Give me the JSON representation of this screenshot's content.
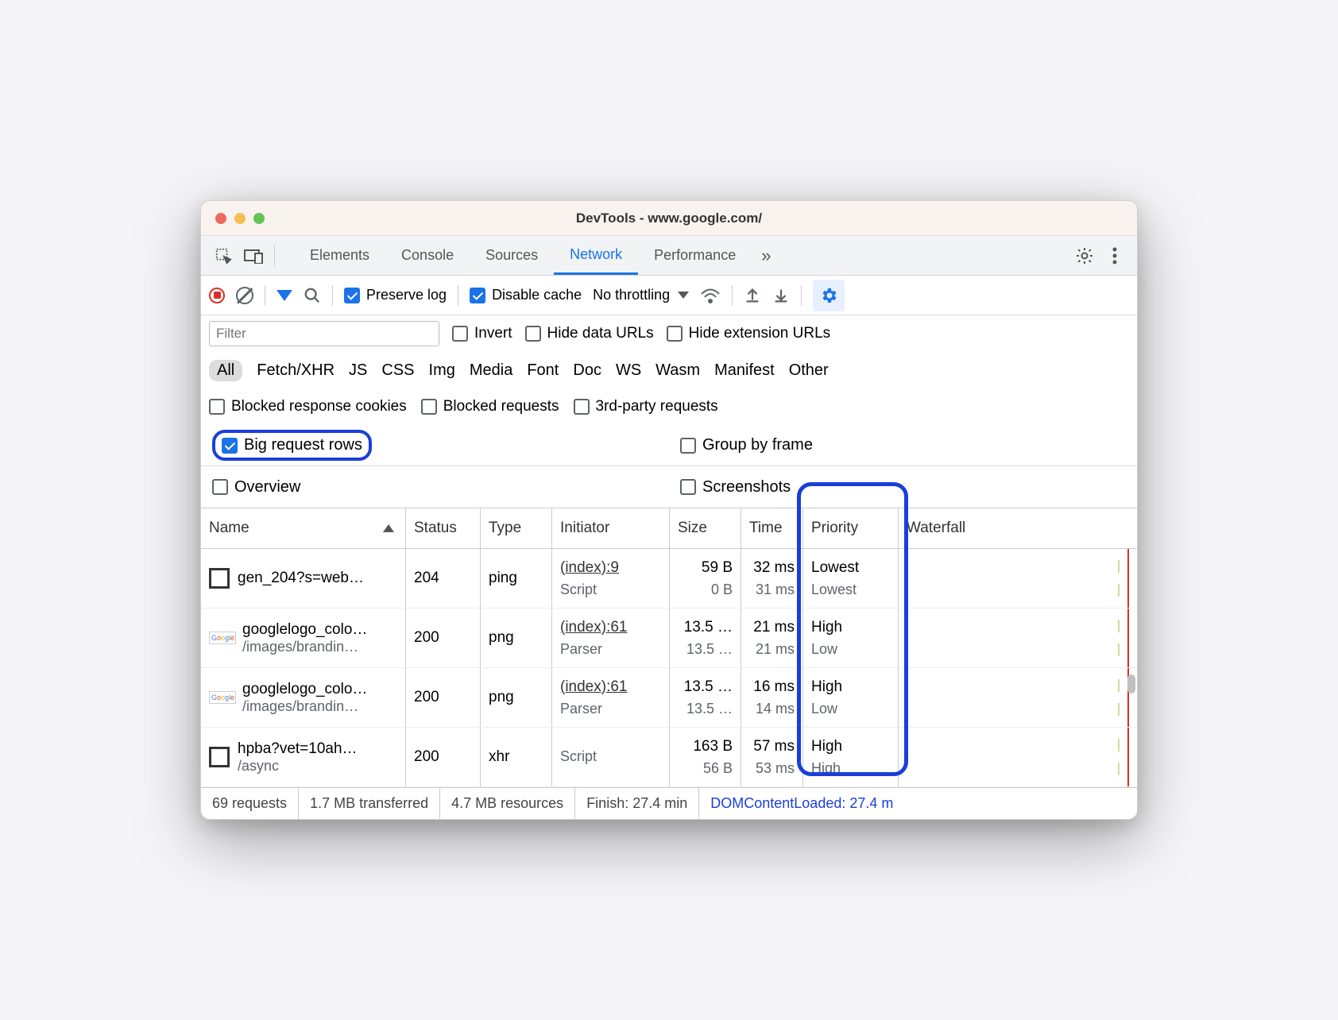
{
  "window": {
    "title": "DevTools - www.google.com/"
  },
  "tabs": {
    "items": [
      "Elements",
      "Console",
      "Sources",
      "Network",
      "Performance"
    ],
    "active_index": 3,
    "more_glyph": "»"
  },
  "toolbar": {
    "preserve_log": {
      "label": "Preserve log",
      "checked": true
    },
    "disable_cache": {
      "label": "Disable cache",
      "checked": true
    },
    "throttling": {
      "label": "No throttling"
    }
  },
  "filterbar": {
    "filter_placeholder": "Filter",
    "invert": {
      "label": "Invert",
      "checked": false
    },
    "hide_data_urls": {
      "label": "Hide data URLs",
      "checked": false
    },
    "hide_ext_urls": {
      "label": "Hide extension URLs",
      "checked": false
    }
  },
  "typebar": {
    "all": "All",
    "types": [
      "Fetch/XHR",
      "JS",
      "CSS",
      "Img",
      "Media",
      "Font",
      "Doc",
      "WS",
      "Wasm",
      "Manifest",
      "Other"
    ]
  },
  "optionsbar": {
    "blocked_cookies": {
      "label": "Blocked response cookies",
      "checked": false
    },
    "blocked_requests": {
      "label": "Blocked requests",
      "checked": false
    },
    "third_party": {
      "label": "3rd-party requests",
      "checked": false
    }
  },
  "settings": {
    "big_rows": {
      "label": "Big request rows",
      "checked": true,
      "highlighted": true
    },
    "group_by_frame": {
      "label": "Group by frame",
      "checked": false
    },
    "overview": {
      "label": "Overview",
      "checked": false
    },
    "screenshots": {
      "label": "Screenshots",
      "checked": false
    }
  },
  "columns": {
    "name": "Name",
    "status": "Status",
    "type": "Type",
    "initiator": "Initiator",
    "size": "Size",
    "time": "Time",
    "priority": "Priority",
    "waterfall": "Waterfall"
  },
  "rows": [
    {
      "icon": "box",
      "name": "gen_204?s=web…",
      "name_sub": "",
      "status": "204",
      "type": "ping",
      "initiator": "(index):9",
      "initiator_sub": "Script",
      "size": "59 B",
      "size_sub": "0 B",
      "time": "32 ms",
      "time_sub": "31 ms",
      "priority": "Lowest",
      "priority_sub": "Lowest"
    },
    {
      "icon": "google",
      "name": "googlelogo_colo…",
      "name_sub": "/images/brandin…",
      "status": "200",
      "type": "png",
      "initiator": "(index):61",
      "initiator_sub": "Parser",
      "size": "13.5 …",
      "size_sub": "13.5 …",
      "time": "21 ms",
      "time_sub": "21 ms",
      "priority": "High",
      "priority_sub": "Low"
    },
    {
      "icon": "google",
      "name": "googlelogo_colo…",
      "name_sub": "/images/brandin…",
      "status": "200",
      "type": "png",
      "initiator": "(index):61",
      "initiator_sub": "Parser",
      "size": "13.5 …",
      "size_sub": "13.5 …",
      "time": "16 ms",
      "time_sub": "14 ms",
      "priority": "High",
      "priority_sub": "Low"
    },
    {
      "icon": "box",
      "name": "hpba?vet=10ah…",
      "name_sub": "/async",
      "status": "200",
      "type": "xhr",
      "initiator": "Script",
      "initiator_sub": "",
      "size": "163 B",
      "size_sub": "56 B",
      "time": "57 ms",
      "time_sub": "53 ms",
      "priority": "High",
      "priority_sub": "High"
    }
  ],
  "statusbar": {
    "requests": "69 requests",
    "transferred": "1.7 MB transferred",
    "resources": "4.7 MB resources",
    "finish": "Finish: 27.4 min",
    "dcl": "DOMContentLoaded: 27.4 m"
  },
  "highlight": {
    "priority_column": true,
    "color": "#1a3fd8"
  },
  "waterfall": {
    "red_line_left_pct": 96,
    "bars": [
      {
        "left_pct": 92,
        "width_pct": 0.8
      },
      {
        "left_pct": 92,
        "width_pct": 0.8
      },
      {
        "left_pct": 92,
        "width_pct": 0.8
      },
      {
        "left_pct": 92,
        "width_pct": 0.8
      }
    ]
  }
}
